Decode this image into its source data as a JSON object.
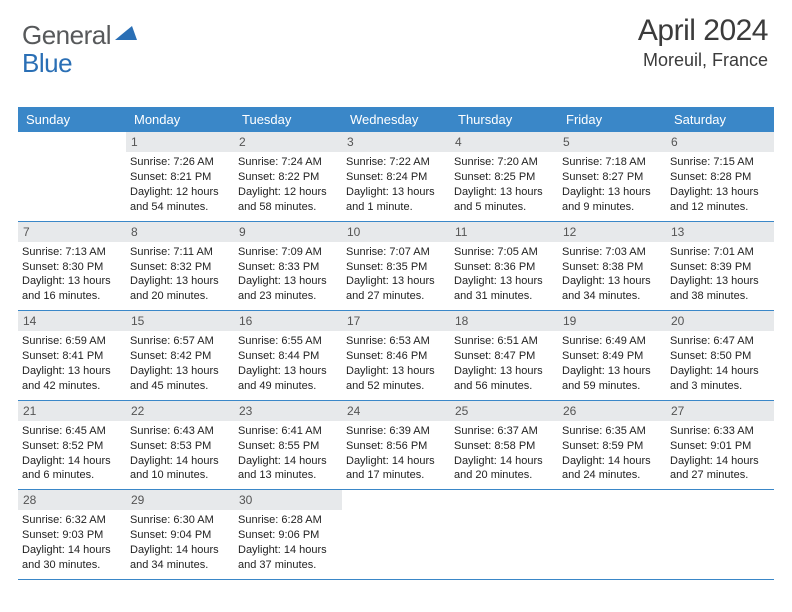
{
  "logo": {
    "text_gray": "General",
    "text_blue": "Blue",
    "gray_color": "#57595b",
    "blue_color": "#2a6fb5",
    "triangle_color": "#2a6fb5"
  },
  "title": "April 2024",
  "location": "Moreuil, France",
  "colors": {
    "header_bg": "#3a87c8",
    "header_text": "#ffffff",
    "daynum_bg": "#e7e9eb",
    "daynum_text": "#555555",
    "body_text": "#222222",
    "rule": "#3a87c8",
    "page_bg": "#ffffff"
  },
  "weekdays": [
    "Sunday",
    "Monday",
    "Tuesday",
    "Wednesday",
    "Thursday",
    "Friday",
    "Saturday"
  ],
  "weeks": [
    [
      null,
      {
        "n": "1",
        "sunrise": "Sunrise: 7:26 AM",
        "sunset": "Sunset: 8:21 PM",
        "daylight": "Daylight: 12 hours and 54 minutes."
      },
      {
        "n": "2",
        "sunrise": "Sunrise: 7:24 AM",
        "sunset": "Sunset: 8:22 PM",
        "daylight": "Daylight: 12 hours and 58 minutes."
      },
      {
        "n": "3",
        "sunrise": "Sunrise: 7:22 AM",
        "sunset": "Sunset: 8:24 PM",
        "daylight": "Daylight: 13 hours and 1 minute."
      },
      {
        "n": "4",
        "sunrise": "Sunrise: 7:20 AM",
        "sunset": "Sunset: 8:25 PM",
        "daylight": "Daylight: 13 hours and 5 minutes."
      },
      {
        "n": "5",
        "sunrise": "Sunrise: 7:18 AM",
        "sunset": "Sunset: 8:27 PM",
        "daylight": "Daylight: 13 hours and 9 minutes."
      },
      {
        "n": "6",
        "sunrise": "Sunrise: 7:15 AM",
        "sunset": "Sunset: 8:28 PM",
        "daylight": "Daylight: 13 hours and 12 minutes."
      }
    ],
    [
      {
        "n": "7",
        "sunrise": "Sunrise: 7:13 AM",
        "sunset": "Sunset: 8:30 PM",
        "daylight": "Daylight: 13 hours and 16 minutes."
      },
      {
        "n": "8",
        "sunrise": "Sunrise: 7:11 AM",
        "sunset": "Sunset: 8:32 PM",
        "daylight": "Daylight: 13 hours and 20 minutes."
      },
      {
        "n": "9",
        "sunrise": "Sunrise: 7:09 AM",
        "sunset": "Sunset: 8:33 PM",
        "daylight": "Daylight: 13 hours and 23 minutes."
      },
      {
        "n": "10",
        "sunrise": "Sunrise: 7:07 AM",
        "sunset": "Sunset: 8:35 PM",
        "daylight": "Daylight: 13 hours and 27 minutes."
      },
      {
        "n": "11",
        "sunrise": "Sunrise: 7:05 AM",
        "sunset": "Sunset: 8:36 PM",
        "daylight": "Daylight: 13 hours and 31 minutes."
      },
      {
        "n": "12",
        "sunrise": "Sunrise: 7:03 AM",
        "sunset": "Sunset: 8:38 PM",
        "daylight": "Daylight: 13 hours and 34 minutes."
      },
      {
        "n": "13",
        "sunrise": "Sunrise: 7:01 AM",
        "sunset": "Sunset: 8:39 PM",
        "daylight": "Daylight: 13 hours and 38 minutes."
      }
    ],
    [
      {
        "n": "14",
        "sunrise": "Sunrise: 6:59 AM",
        "sunset": "Sunset: 8:41 PM",
        "daylight": "Daylight: 13 hours and 42 minutes."
      },
      {
        "n": "15",
        "sunrise": "Sunrise: 6:57 AM",
        "sunset": "Sunset: 8:42 PM",
        "daylight": "Daylight: 13 hours and 45 minutes."
      },
      {
        "n": "16",
        "sunrise": "Sunrise: 6:55 AM",
        "sunset": "Sunset: 8:44 PM",
        "daylight": "Daylight: 13 hours and 49 minutes."
      },
      {
        "n": "17",
        "sunrise": "Sunrise: 6:53 AM",
        "sunset": "Sunset: 8:46 PM",
        "daylight": "Daylight: 13 hours and 52 minutes."
      },
      {
        "n": "18",
        "sunrise": "Sunrise: 6:51 AM",
        "sunset": "Sunset: 8:47 PM",
        "daylight": "Daylight: 13 hours and 56 minutes."
      },
      {
        "n": "19",
        "sunrise": "Sunrise: 6:49 AM",
        "sunset": "Sunset: 8:49 PM",
        "daylight": "Daylight: 13 hours and 59 minutes."
      },
      {
        "n": "20",
        "sunrise": "Sunrise: 6:47 AM",
        "sunset": "Sunset: 8:50 PM",
        "daylight": "Daylight: 14 hours and 3 minutes."
      }
    ],
    [
      {
        "n": "21",
        "sunrise": "Sunrise: 6:45 AM",
        "sunset": "Sunset: 8:52 PM",
        "daylight": "Daylight: 14 hours and 6 minutes."
      },
      {
        "n": "22",
        "sunrise": "Sunrise: 6:43 AM",
        "sunset": "Sunset: 8:53 PM",
        "daylight": "Daylight: 14 hours and 10 minutes."
      },
      {
        "n": "23",
        "sunrise": "Sunrise: 6:41 AM",
        "sunset": "Sunset: 8:55 PM",
        "daylight": "Daylight: 14 hours and 13 minutes."
      },
      {
        "n": "24",
        "sunrise": "Sunrise: 6:39 AM",
        "sunset": "Sunset: 8:56 PM",
        "daylight": "Daylight: 14 hours and 17 minutes."
      },
      {
        "n": "25",
        "sunrise": "Sunrise: 6:37 AM",
        "sunset": "Sunset: 8:58 PM",
        "daylight": "Daylight: 14 hours and 20 minutes."
      },
      {
        "n": "26",
        "sunrise": "Sunrise: 6:35 AM",
        "sunset": "Sunset: 8:59 PM",
        "daylight": "Daylight: 14 hours and 24 minutes."
      },
      {
        "n": "27",
        "sunrise": "Sunrise: 6:33 AM",
        "sunset": "Sunset: 9:01 PM",
        "daylight": "Daylight: 14 hours and 27 minutes."
      }
    ],
    [
      {
        "n": "28",
        "sunrise": "Sunrise: 6:32 AM",
        "sunset": "Sunset: 9:03 PM",
        "daylight": "Daylight: 14 hours and 30 minutes."
      },
      {
        "n": "29",
        "sunrise": "Sunrise: 6:30 AM",
        "sunset": "Sunset: 9:04 PM",
        "daylight": "Daylight: 14 hours and 34 minutes."
      },
      {
        "n": "30",
        "sunrise": "Sunrise: 6:28 AM",
        "sunset": "Sunset: 9:06 PM",
        "daylight": "Daylight: 14 hours and 37 minutes."
      },
      null,
      null,
      null,
      null
    ]
  ]
}
